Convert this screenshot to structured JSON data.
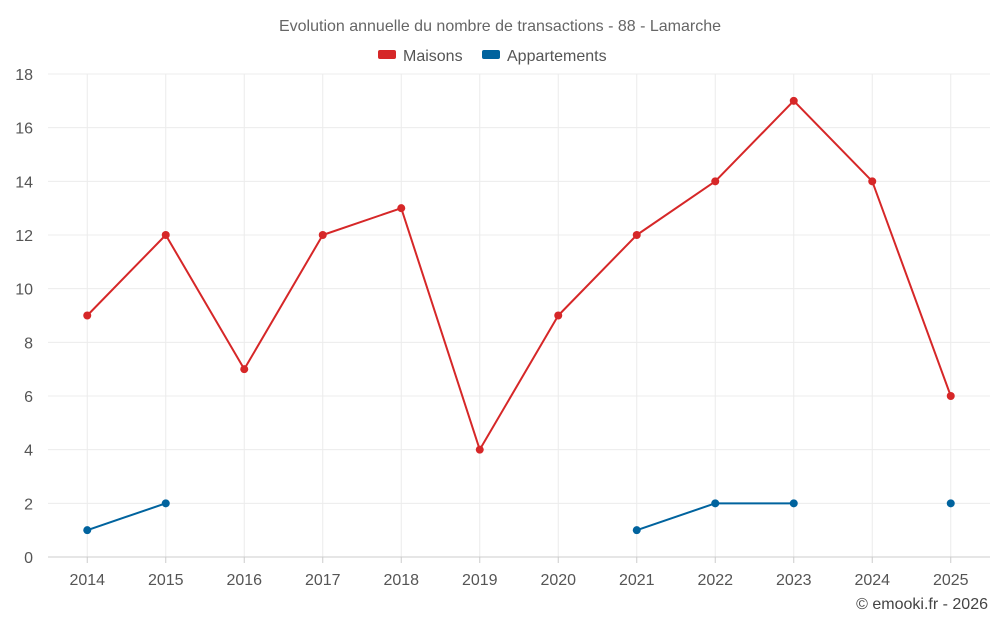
{
  "chart_data": {
    "type": "line",
    "title": "Evolution annuelle du nombre de transactions - 88 - Lamarche",
    "xlabel": "",
    "ylabel": "",
    "categories": [
      "2014",
      "2015",
      "2016",
      "2017",
      "2018",
      "2019",
      "2020",
      "2021",
      "2022",
      "2023",
      "2024",
      "2025"
    ],
    "ylim": [
      0,
      18
    ],
    "yticks": [
      0,
      2,
      4,
      6,
      8,
      10,
      12,
      14,
      16,
      18
    ],
    "grid": true,
    "legend_position": "top-center",
    "series": [
      {
        "name": "Maisons",
        "color": "#d62728",
        "values": [
          9,
          12,
          7,
          12,
          13,
          4,
          9,
          12,
          14,
          17,
          14,
          6
        ]
      },
      {
        "name": "Appartements",
        "color": "#00639e",
        "values": [
          1,
          2,
          null,
          null,
          null,
          null,
          null,
          1,
          2,
          2,
          null,
          2
        ]
      }
    ]
  },
  "credit": "© emooki.fr - 2026"
}
